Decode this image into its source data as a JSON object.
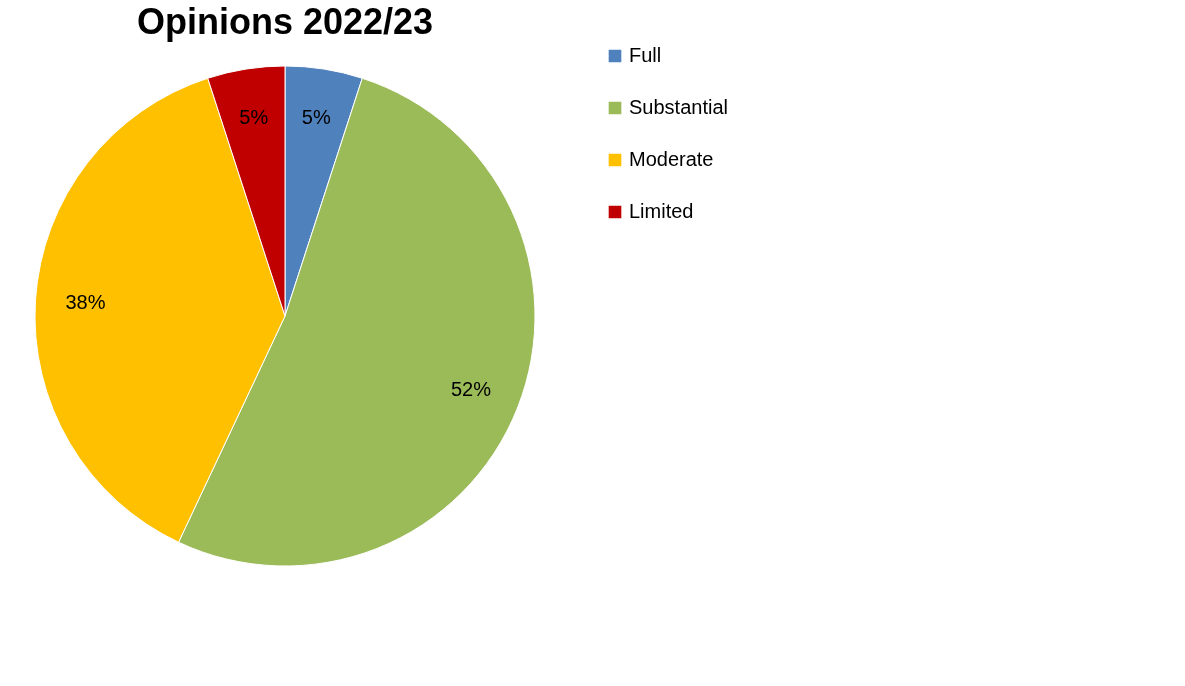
{
  "chart_data": {
    "type": "pie",
    "title": "Opinions 2022/23",
    "categories": [
      "Full",
      "Substantial",
      "Moderate",
      "Limited"
    ],
    "values": [
      5,
      52,
      38,
      5
    ],
    "colors": [
      "#4f81bd",
      "#9bbb59",
      "#ffc000",
      "#c00000"
    ],
    "value_labels": [
      "5%",
      "52%",
      "38%",
      "5%"
    ],
    "legend": "right"
  }
}
